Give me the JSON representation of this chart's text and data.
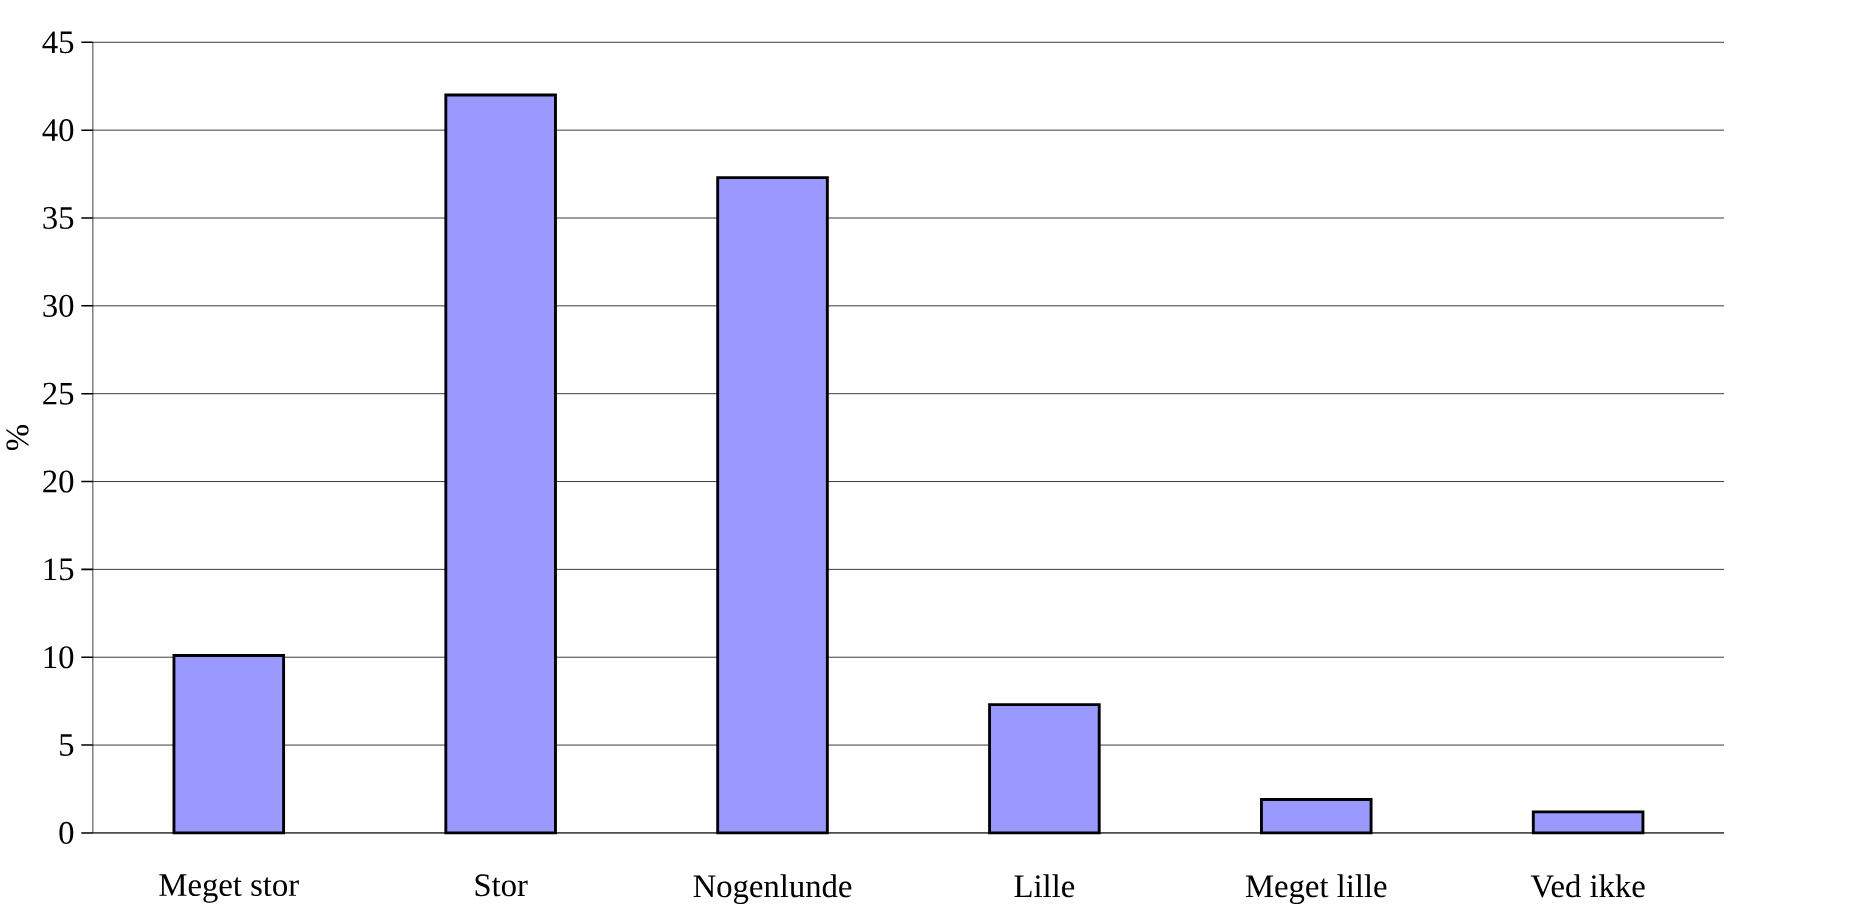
{
  "chart_data": {
    "type": "bar",
    "ylabel": "%",
    "categories": [
      "Meget stor",
      "Stor",
      "Nogenlunde",
      "Lille",
      "Meget lille",
      "Ved ikke"
    ],
    "values": [
      10.1,
      42.0,
      37.3,
      7.3,
      1.9,
      1.2
    ],
    "color": "#9999ff",
    "ylim": [
      0,
      45
    ],
    "yticks": [
      0,
      5,
      10,
      15,
      20,
      25,
      30,
      35,
      40,
      45
    ],
    "grid": "y"
  }
}
